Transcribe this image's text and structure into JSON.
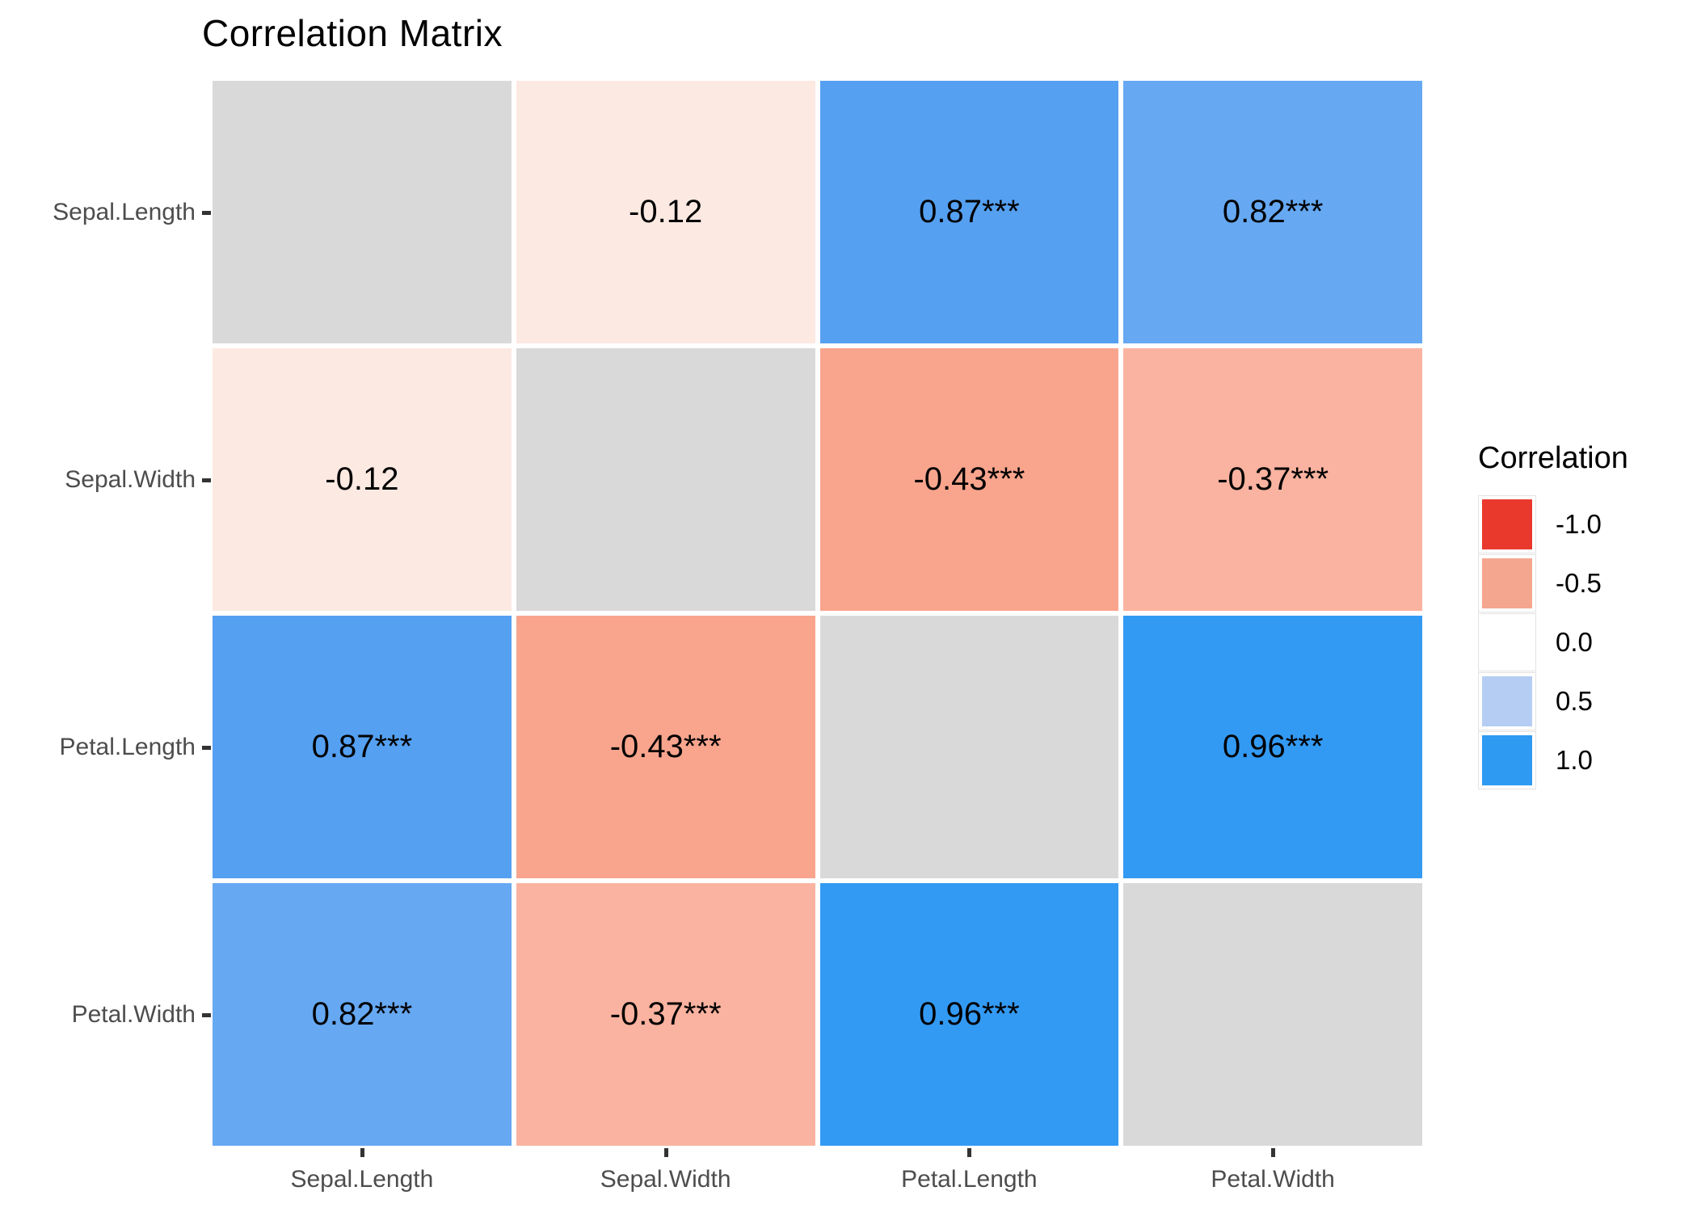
{
  "chart_data": {
    "type": "heatmap",
    "title": "Correlation Matrix",
    "x_categories": [
      "Sepal.Length",
      "Sepal.Width",
      "Petal.Length",
      "Petal.Width"
    ],
    "y_categories": [
      "Sepal.Length",
      "Sepal.Width",
      "Petal.Length",
      "Petal.Width"
    ],
    "correlation_values": [
      [
        null,
        -0.12,
        0.87,
        0.82
      ],
      [
        -0.12,
        null,
        -0.43,
        -0.37
      ],
      [
        0.87,
        -0.43,
        null,
        0.96
      ],
      [
        0.82,
        -0.37,
        0.96,
        null
      ]
    ],
    "cells": [
      [
        {
          "label": "",
          "color": "#D9D9D9"
        },
        {
          "label": "-0.12",
          "color": "#FCE9E2"
        },
        {
          "label": "0.87***",
          "color": "#55A0F1"
        },
        {
          "label": "0.82***",
          "color": "#66A8F2"
        }
      ],
      [
        {
          "label": "-0.12",
          "color": "#FCE9E2"
        },
        {
          "label": "",
          "color": "#D9D9D9"
        },
        {
          "label": "-0.43***",
          "color": "#F9A58E"
        },
        {
          "label": "-0.37***",
          "color": "#FAB3A0"
        }
      ],
      [
        {
          "label": "0.87***",
          "color": "#55A0F1"
        },
        {
          "label": "-0.43***",
          "color": "#F9A58E"
        },
        {
          "label": "",
          "color": "#D9D9D9"
        },
        {
          "label": "0.96***",
          "color": "#339AF3"
        }
      ],
      [
        {
          "label": "0.82***",
          "color": "#66A8F2"
        },
        {
          "label": "-0.37***",
          "color": "#FAB3A0"
        },
        {
          "label": "0.96***",
          "color": "#339AF3"
        },
        {
          "label": "",
          "color": "#D9D9D9"
        }
      ]
    ],
    "legend": {
      "title": "Correlation",
      "position": "right",
      "entries": [
        {
          "label": "-1.0",
          "color": "#E9392D"
        },
        {
          "label": "-0.5",
          "color": "#F5A68F"
        },
        {
          "label": "0.0",
          "color": "#FFFFFF"
        },
        {
          "label": "0.5",
          "color": "#B5CDF3"
        },
        {
          "label": "1.0",
          "color": "#2E9AF2"
        }
      ]
    },
    "diagonal_color": "#D9D9D9",
    "grid": false,
    "axis_text_color": "#4D4D4D",
    "tick_color": "#333333"
  }
}
